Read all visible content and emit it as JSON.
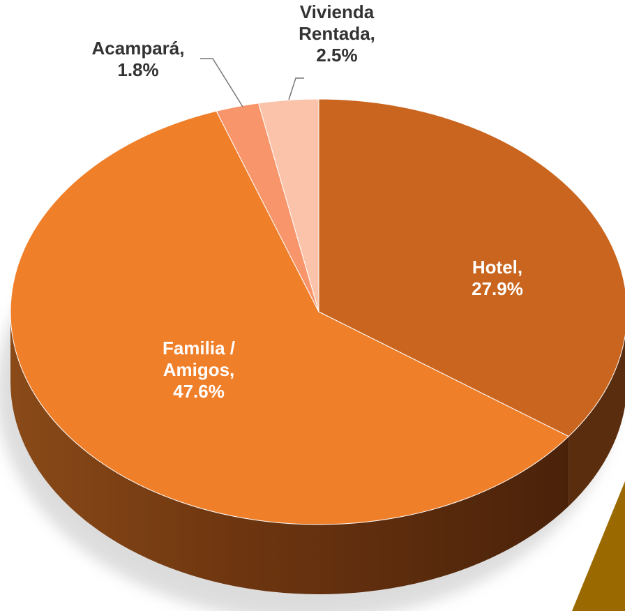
{
  "chart_data": {
    "type": "pie",
    "categories": [
      "Hotel,",
      "Familia / Amigos,",
      "Acampará,",
      "Vivienda Rentada,"
    ],
    "values": [
      27.9,
      47.6,
      1.8,
      2.5
    ],
    "value_labels": [
      "27.9%",
      "47.6%",
      "1.8%",
      "2.5%"
    ],
    "colors": [
      "#c9651e",
      "#f07f2a",
      "#f8956a",
      "#fbc4aa"
    ]
  }
}
